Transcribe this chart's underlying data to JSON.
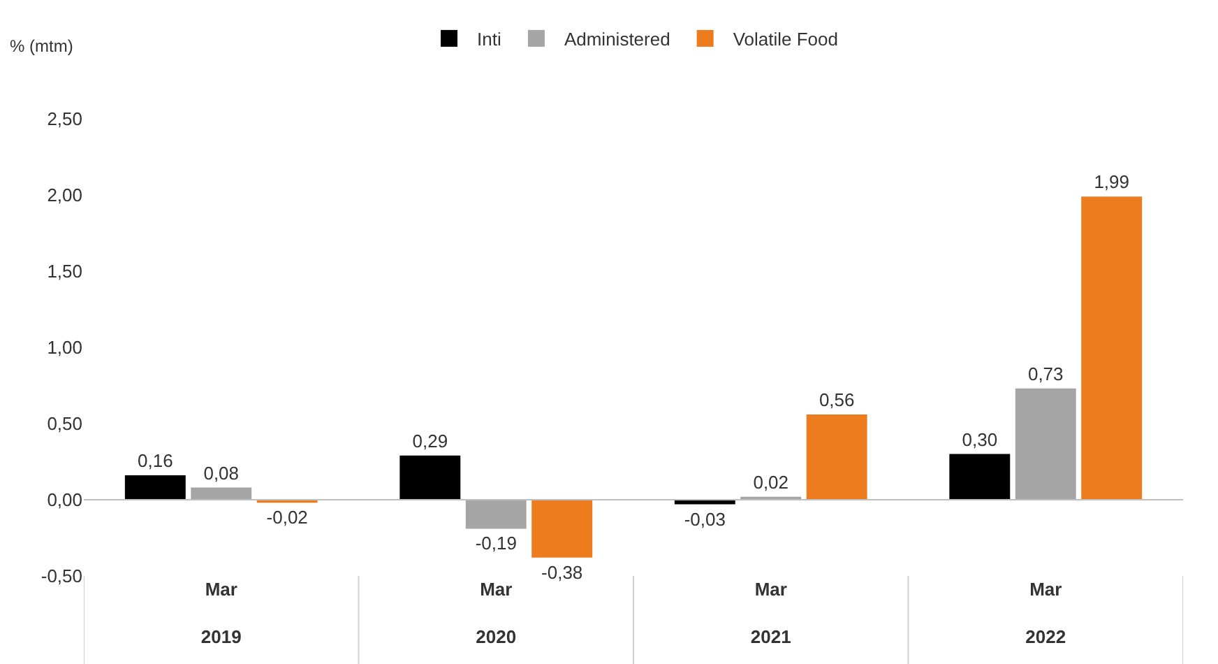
{
  "chart_data": {
    "type": "bar",
    "ylabel": "% (mtm)",
    "categories": [
      "Mar\n2019",
      "Mar\n2020",
      "Mar\n2021",
      "Mar\n2022"
    ],
    "series": [
      {
        "name": "Inti",
        "color": "#000000",
        "values": [
          0.16,
          0.29,
          -0.03,
          0.3
        ],
        "value_labels": [
          "0,16",
          "0,29",
          "-0,03",
          "0,30"
        ]
      },
      {
        "name": "Administered",
        "color": "#a5a5a5",
        "values": [
          0.08,
          -0.19,
          0.02,
          0.73
        ],
        "value_labels": [
          "0,08",
          "-0,19",
          "0,02",
          "0,73"
        ]
      },
      {
        "name": "Volatile Food",
        "color": "#ec7c1e",
        "values": [
          -0.02,
          -0.38,
          0.56,
          1.99
        ],
        "value_labels": [
          "-0,02",
          "-0,38",
          "0,56",
          "1,99"
        ]
      }
    ],
    "ylim": [
      -0.5,
      2.5
    ],
    "yticks": [
      {
        "value": -0.5,
        "label": "-0,50"
      },
      {
        "value": 0,
        "label": "0,00"
      },
      {
        "value": 0.5,
        "label": "0,50"
      },
      {
        "value": 1,
        "label": "1,00"
      },
      {
        "value": 1.5,
        "label": "1,50"
      },
      {
        "value": 2,
        "label": "2,00"
      },
      {
        "value": 2.5,
        "label": "2,50"
      }
    ],
    "legend": "top"
  }
}
